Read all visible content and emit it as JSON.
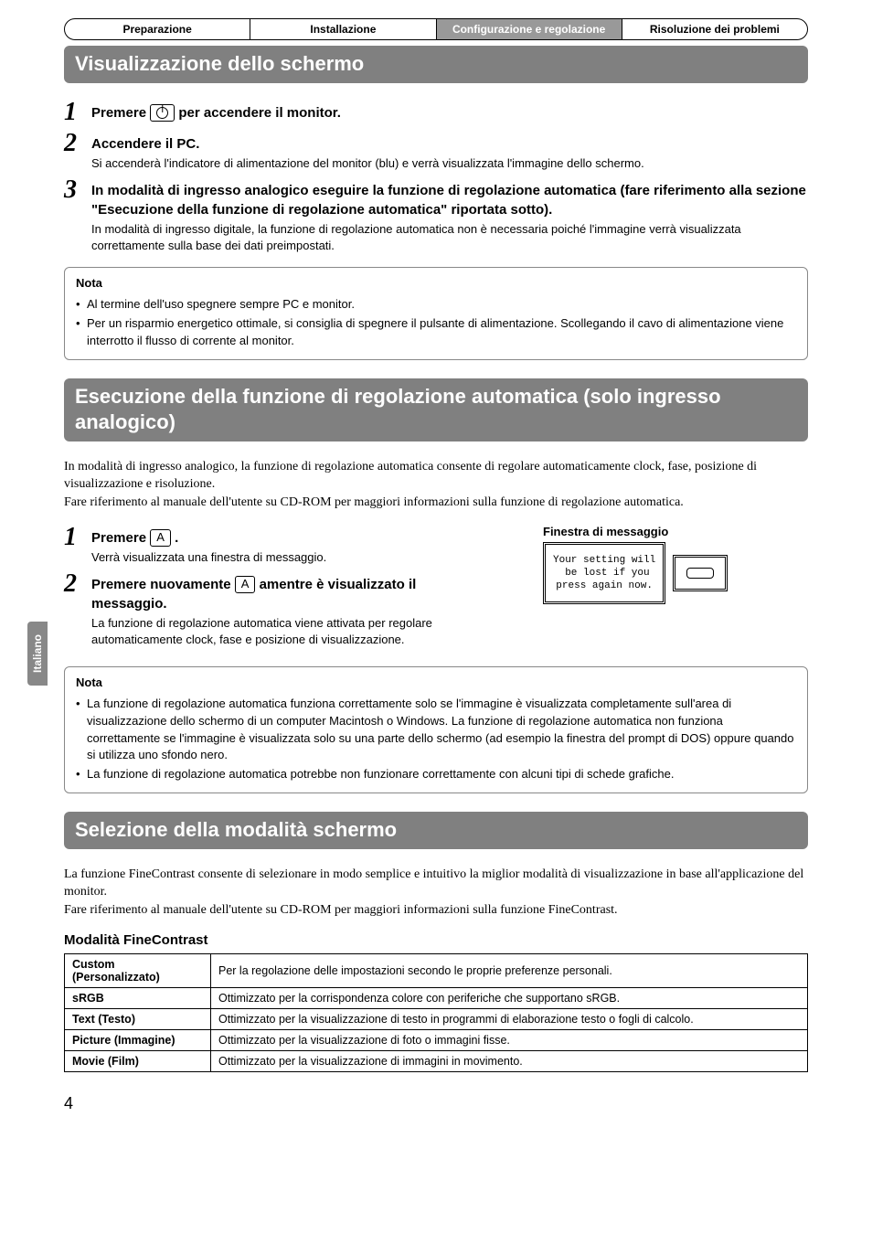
{
  "side_tab": "Italiano",
  "tabs": {
    "items": [
      {
        "label": "Preparazione",
        "active": false
      },
      {
        "label": "Installazione",
        "active": false
      },
      {
        "label": "Configurazione e regolazione",
        "active": true
      },
      {
        "label": "Risoluzione dei problemi",
        "active": false
      }
    ]
  },
  "section1": {
    "title": "Visualizzazione dello schermo",
    "steps": [
      {
        "num": "1",
        "title_pre": "Premere ",
        "title_post": " per accendere il monitor.",
        "icon_type": "power"
      },
      {
        "num": "2",
        "title": "Accendere il PC.",
        "text": "Si accenderà l'indicatore di alimentazione del monitor (blu) e verrà visualizzata l'immagine dello schermo."
      },
      {
        "num": "3",
        "title": "In modalità di ingresso analogico eseguire la funzione di regolazione automatica (fare riferimento alla sezione \"Esecuzione della funzione di regolazione automatica\" riportata sotto).",
        "text": "In modalità di ingresso digitale, la funzione di regolazione automatica non è necessaria poiché l'immagine verrà visualizzata correttamente sulla base dei dati preimpostati."
      }
    ],
    "note": {
      "title": "Nota",
      "items": [
        "Al termine dell'uso spegnere sempre PC e monitor.",
        "Per un risparmio energetico ottimale, si consiglia di spegnere il pulsante di alimentazione. Scollegando il cavo di alimentazione viene interrotto il flusso di corrente al monitor."
      ]
    }
  },
  "section2": {
    "title": "Esecuzione della funzione di regolazione automatica (solo ingresso analogico)",
    "intro": "In modalità di ingresso analogico, la funzione di regolazione automatica consente di regolare automaticamente clock, fase, posizione di visualizzazione e risoluzione.\nFare riferimento al manuale dell'utente su CD-ROM per maggiori informazioni sulla funzione di regolazione automatica.",
    "msg_label": "Finestra di messaggio",
    "msg_text": "Your setting will\n be lost if you\npress again now.",
    "steps": [
      {
        "num": "1",
        "title_pre": "Premere ",
        "icon": "A",
        "title_post": " .",
        "text": "Verrà visualizzata una finestra di messaggio."
      },
      {
        "num": "2",
        "title_pre": "Premere nuovamente ",
        "icon": "A",
        "title_post": " amentre è visualizzato il messaggio.",
        "text": "La funzione di regolazione automatica viene attivata per regolare automaticamente clock, fase e posizione di visualizzazione."
      }
    ],
    "note": {
      "title": "Nota",
      "items": [
        "La funzione di regolazione automatica funziona correttamente solo se l'immagine è visualizzata completamente sull'area di visualizzazione dello schermo di un computer Macintosh o Windows. La funzione di regolazione automatica non funziona correttamente se l'immagine è visualizzata solo su una parte dello schermo (ad esempio la finestra del prompt di DOS) oppure quando si utilizza uno sfondo nero.",
        "La funzione di regolazione automatica potrebbe non funzionare correttamente con alcuni tipi di schede grafiche."
      ]
    }
  },
  "section3": {
    "title": "Selezione della modalità schermo",
    "intro": "La funzione FineContrast consente di selezionare in modo semplice e intuitivo la miglior modalità di visualizzazione in base all'applicazione del monitor.\nFare riferimento al manuale dell'utente su CD-ROM per maggiori informazioni sulla funzione FineContrast.",
    "table_title": "Modalità FineContrast",
    "rows": [
      {
        "mode": "Custom (Personalizzato)",
        "desc": "Per la regolazione delle impostazioni secondo le proprie preferenze personali."
      },
      {
        "mode": "sRGB",
        "desc": "Ottimizzato per la corrispondenza colore con periferiche che supportano sRGB."
      },
      {
        "mode": "Text (Testo)",
        "desc": "Ottimizzato per la visualizzazione di testo in programmi di elaborazione testo o fogli di calcolo."
      },
      {
        "mode": "Picture (Immagine)",
        "desc": "Ottimizzato per la visualizzazione di foto o immagini fisse."
      },
      {
        "mode": "Movie (Film)",
        "desc": "Ottimizzato per la visualizzazione di immagini in movimento."
      }
    ]
  },
  "page_number": "4",
  "colors": {
    "header_bg": "#808080",
    "header_fg": "#ffffff",
    "tab_active_bg": "#999999",
    "border": "#000000",
    "side_tab_bg": "#888888"
  }
}
